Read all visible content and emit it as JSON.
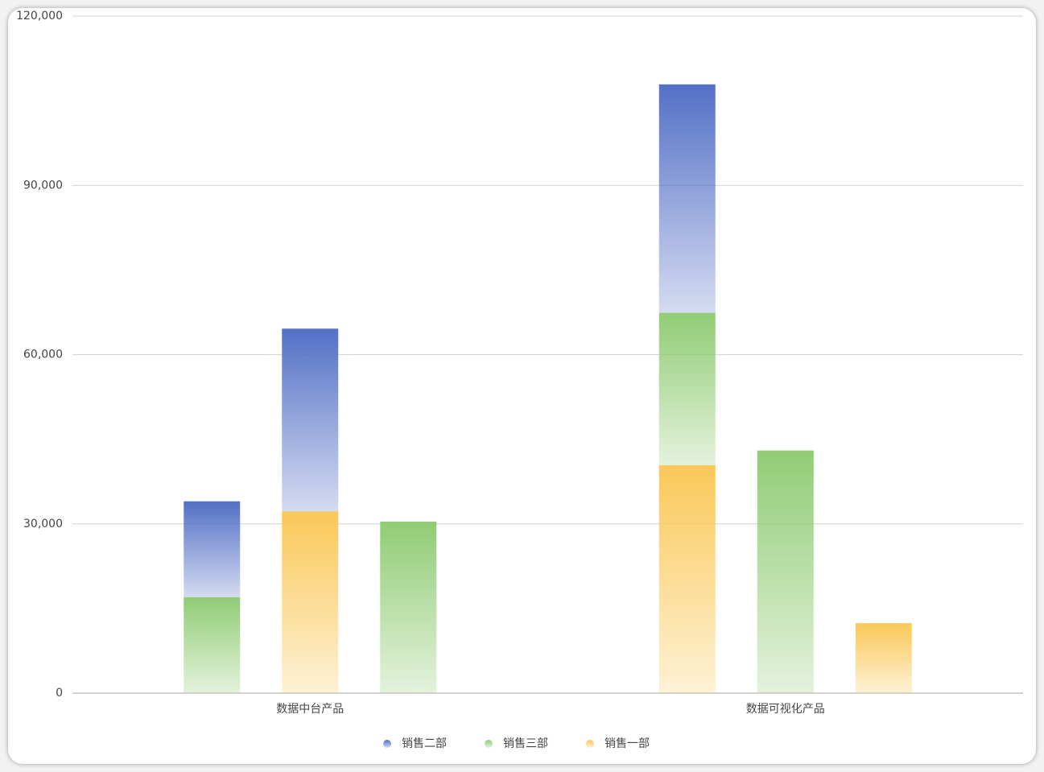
{
  "chart_data": {
    "type": "grouped-stacked-bar",
    "categories": [
      "数据中台产品",
      "数据可视化产品"
    ],
    "series": [
      {
        "name": "销售二部",
        "color": "#5470c6",
        "values": [
          [
            17000,
            32400,
            null
          ],
          [
            40500,
            null,
            null
          ]
        ]
      },
      {
        "name": "销售三部",
        "color": "#91cc75",
        "values": [
          [
            17000,
            null,
            30400
          ],
          [
            27000,
            43000,
            null
          ]
        ]
      },
      {
        "name": "销售一部",
        "color": "#fac858",
        "values": [
          [
            null,
            32200,
            null
          ],
          [
            40400,
            null,
            12400
          ]
        ]
      }
    ],
    "ylim": [
      0,
      120000
    ],
    "yticks": [
      0,
      {
        "value": 30000,
        "label": "30,000"
      },
      {
        "value": 60000,
        "label": "60,000"
      },
      {
        "value": 90000,
        "label": "90,000"
      },
      {
        "value": 120000,
        "label": "120,000"
      }
    ],
    "grid": true,
    "legend": "bottom"
  }
}
